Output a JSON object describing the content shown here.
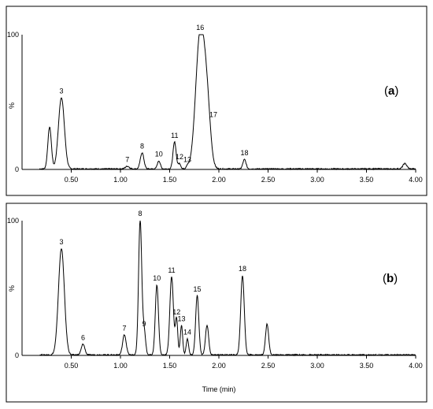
{
  "chart_data": [
    {
      "type": "line",
      "panel_label": {
        "open": "(",
        "letter": "a",
        "close": ")"
      },
      "ylabel": "%",
      "xlabel": "",
      "xlim": [
        0.0,
        4.0
      ],
      "ylim": [
        0,
        100
      ],
      "x_ticks": [
        "0.50",
        "1.00",
        "1.50",
        "2.00",
        "2.50",
        "3.00",
        "3.50",
        "4.00"
      ],
      "y_ticks": [
        "0",
        "100"
      ],
      "peaks": [
        {
          "label": "",
          "x": 0.28,
          "y": 31,
          "w": 0.018
        },
        {
          "label": "3",
          "x": 0.4,
          "y": 53,
          "w": 0.03
        },
        {
          "label": "7",
          "x": 1.07,
          "y": 2,
          "w": 0.02
        },
        {
          "label": "8",
          "x": 1.22,
          "y": 12,
          "w": 0.018
        },
        {
          "label": "10",
          "x": 1.39,
          "y": 6,
          "w": 0.015
        },
        {
          "label": "11",
          "x": 1.55,
          "y": 20,
          "w": 0.016
        },
        {
          "label": "12",
          "x": 1.6,
          "y": 4,
          "w": 0.013
        },
        {
          "label": "13",
          "x": 1.68,
          "y": 2,
          "w": 0.012
        },
        {
          "label": "16",
          "x": 1.81,
          "y": 100,
          "w": 0.045
        },
        {
          "label": "17",
          "x": 1.88,
          "y": 40,
          "w": 0.035
        },
        {
          "label": "18",
          "x": 2.26,
          "y": 7,
          "w": 0.016
        },
        {
          "label": "",
          "x": 3.89,
          "y": 4,
          "w": 0.02
        }
      ]
    },
    {
      "type": "line",
      "panel_label": {
        "open": "(",
        "letter": "b",
        "close": ")"
      },
      "ylabel": "%",
      "xlabel": "Time (min)",
      "xlim": [
        0.0,
        4.0
      ],
      "ylim": [
        0,
        100
      ],
      "x_ticks": [
        "0.50",
        "1.00",
        "1.50",
        "2.00",
        "2.50",
        "3.00",
        "3.50",
        "4.00"
      ],
      "y_ticks": [
        "0",
        "100"
      ],
      "peaks": [
        {
          "label": "3",
          "x": 0.4,
          "y": 79,
          "w": 0.03
        },
        {
          "label": "6",
          "x": 0.62,
          "y": 8,
          "w": 0.018
        },
        {
          "label": "7",
          "x": 1.04,
          "y": 15,
          "w": 0.018
        },
        {
          "label": "8",
          "x": 1.2,
          "y": 100,
          "w": 0.016
        },
        {
          "label": "9",
          "x": 1.24,
          "y": 18,
          "w": 0.015
        },
        {
          "label": "10",
          "x": 1.37,
          "y": 52,
          "w": 0.016
        },
        {
          "label": "11",
          "x": 1.52,
          "y": 58,
          "w": 0.018
        },
        {
          "label": "12",
          "x": 1.57,
          "y": 27,
          "w": 0.012
        },
        {
          "label": "13",
          "x": 1.62,
          "y": 22,
          "w": 0.012
        },
        {
          "label": "14",
          "x": 1.68,
          "y": 12,
          "w": 0.012
        },
        {
          "label": "15",
          "x": 1.78,
          "y": 44,
          "w": 0.016
        },
        {
          "label": "",
          "x": 1.88,
          "y": 22,
          "w": 0.016
        },
        {
          "label": "18",
          "x": 2.24,
          "y": 59,
          "w": 0.018
        },
        {
          "label": "",
          "x": 2.49,
          "y": 23,
          "w": 0.016
        }
      ]
    }
  ]
}
